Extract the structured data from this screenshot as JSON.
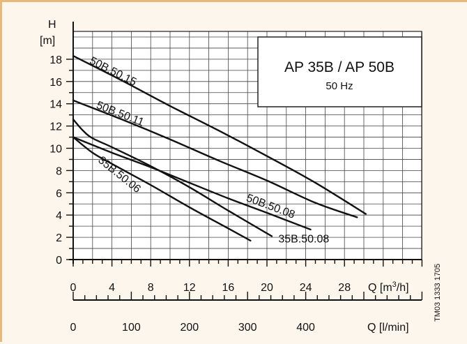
{
  "chart_data": {
    "type": "line",
    "title": "AP 35B / AP 50B",
    "subtitle": "50 Hz",
    "ylabel": "H",
    "yunit": "[m]",
    "xlabel": "Q [m³/h]",
    "xlabel_base": "Q [m",
    "xlabel_sup": "3",
    "xlabel_tail": "/h]",
    "x2label": "Q [l/min]",
    "side_code": "TM03 1333 1705",
    "ylim": [
      0,
      19
    ],
    "xlim": [
      0,
      32
    ],
    "yticks": [
      0,
      2,
      4,
      6,
      8,
      10,
      12,
      14,
      16,
      18
    ],
    "xticks": [
      0,
      4,
      8,
      12,
      16,
      20,
      24,
      28
    ],
    "x2ticks": [
      0,
      100,
      200,
      300,
      400
    ],
    "grid": true,
    "series": [
      {
        "name": "50B.50.15",
        "x": [
          0,
          5,
          10,
          15,
          20,
          25,
          30.2
        ],
        "y": [
          18.3,
          16.1,
          13.8,
          11.6,
          9.3,
          6.9,
          4.1
        ]
      },
      {
        "name": "50B.50.11",
        "x": [
          0,
          5,
          10,
          15,
          20,
          25,
          29.3
        ],
        "y": [
          14.3,
          12.6,
          10.8,
          8.9,
          7.1,
          5.1,
          3.8
        ]
      },
      {
        "name": "50B.50.08",
        "x": [
          0,
          4,
          8,
          12,
          16,
          20,
          24.5
        ],
        "y": [
          11.0,
          9.6,
          8.3,
          6.9,
          5.5,
          4.2,
          2.7
        ]
      },
      {
        "name": "35B.50.08",
        "x": [
          0,
          1,
          2,
          4,
          8,
          12,
          16,
          20.5
        ],
        "y": [
          12.6,
          11.6,
          10.9,
          10.1,
          8.4,
          6.5,
          4.4,
          2.1
        ]
      },
      {
        "name": "35B.50.06",
        "x": [
          0,
          2,
          4,
          8,
          12,
          16,
          18.3
        ],
        "y": [
          11.0,
          9.6,
          8.6,
          6.7,
          4.7,
          2.8,
          1.7
        ]
      }
    ]
  }
}
